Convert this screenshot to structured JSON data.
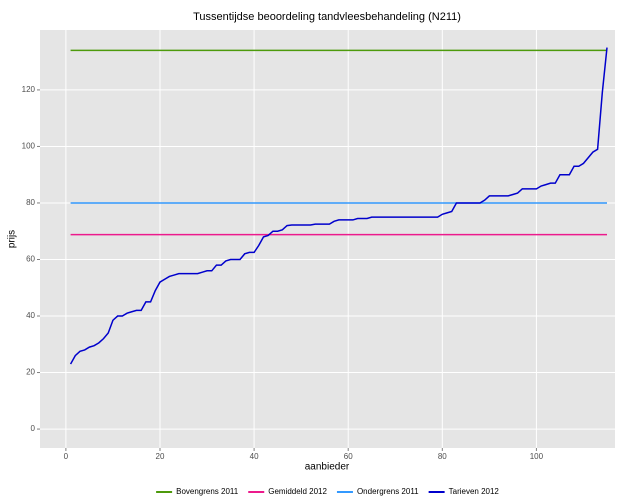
{
  "chart_data": {
    "type": "line",
    "title": "Tussentijdse beoordeling tandvleesbehandeling (N211)",
    "x_label": "aanbieder",
    "y_label": "prijs",
    "xlim": [
      -5.5,
      116.7
    ],
    "ylim": [
      -6.7,
      141.2
    ],
    "xticks": [
      0,
      20,
      40,
      60,
      80,
      100
    ],
    "yticks": [
      0,
      20,
      40,
      60,
      80,
      100,
      120
    ],
    "grid": true,
    "legend": "bottom",
    "series": [
      {
        "name": "Bovengrens 2011",
        "color": "#4d9a0c",
        "x": [
          1,
          115
        ],
        "values": [
          134,
          134
        ]
      },
      {
        "name": "Gemiddeld 2012",
        "color": "#ec1a8c",
        "x": [
          1,
          115
        ],
        "values": [
          68.8,
          68.8
        ]
      },
      {
        "name": "Ondergrens 2011",
        "color": "#3399ff",
        "x": [
          1,
          115
        ],
        "values": [
          80,
          80
        ]
      },
      {
        "name": "Tarieven 2012",
        "color": "#0000cc",
        "x": [
          1,
          2,
          3,
          4,
          5,
          6,
          7,
          8,
          9,
          10,
          11,
          12,
          13,
          14,
          15,
          16,
          17,
          18,
          19,
          20,
          21,
          22,
          23,
          24,
          25,
          26,
          27,
          28,
          29,
          30,
          31,
          32,
          33,
          34,
          35,
          36,
          37,
          38,
          39,
          40,
          41,
          42,
          43,
          44,
          45,
          46,
          47,
          48,
          49,
          50,
          51,
          52,
          53,
          54,
          55,
          56,
          57,
          58,
          59,
          60,
          61,
          62,
          63,
          64,
          65,
          66,
          67,
          68,
          69,
          70,
          71,
          72,
          73,
          74,
          75,
          76,
          77,
          78,
          79,
          80,
          81,
          82,
          83,
          84,
          85,
          86,
          87,
          88,
          89,
          90,
          91,
          92,
          93,
          94,
          95,
          96,
          97,
          98,
          99,
          100,
          101,
          102,
          103,
          104,
          105,
          106,
          107,
          108,
          109,
          110,
          111,
          112,
          113,
          114,
          115
        ],
        "values": [
          23,
          26,
          27.5,
          28,
          29,
          29.5,
          30.5,
          32,
          34,
          38.5,
          40,
          40,
          41,
          41.5,
          42,
          42,
          45,
          45,
          49,
          52,
          53,
          54,
          54.5,
          55,
          55,
          55,
          55,
          55,
          55.5,
          56,
          56,
          58,
          58,
          59.5,
          60,
          60,
          60,
          62,
          62.5,
          62.5,
          65,
          68,
          68.5,
          70,
          70,
          70.5,
          72,
          72.2,
          72.2,
          72.2,
          72.2,
          72.2,
          72.5,
          72.5,
          72.5,
          72.5,
          73.5,
          74,
          74,
          74,
          74,
          74.5,
          74.5,
          74.5,
          75,
          75,
          75,
          75,
          75,
          75,
          75,
          75,
          75,
          75,
          75,
          75,
          75,
          75,
          75,
          76,
          76.5,
          77,
          80,
          80,
          80,
          80,
          80,
          80,
          81,
          82.5,
          82.5,
          82.5,
          82.5,
          82.5,
          83,
          83.5,
          85,
          85,
          85,
          85,
          86,
          86.5,
          87,
          87,
          90,
          90,
          90,
          93,
          93,
          94,
          96,
          98,
          99,
          119,
          135
        ]
      }
    ]
  }
}
